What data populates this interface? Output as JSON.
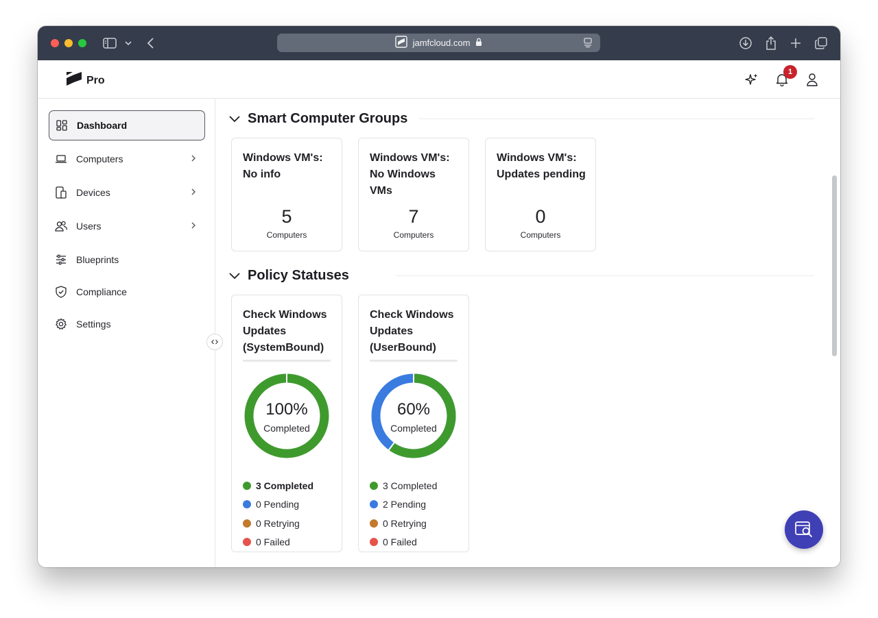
{
  "browser": {
    "url": "jamfcloud.com"
  },
  "header": {
    "app_name": "Pro",
    "notification_count": "1"
  },
  "sidebar": {
    "items": [
      {
        "label": "Dashboard",
        "icon": "dashboard-icon",
        "active": true,
        "has_chevron": false
      },
      {
        "label": "Computers",
        "icon": "laptop-icon",
        "active": false,
        "has_chevron": true
      },
      {
        "label": "Devices",
        "icon": "devices-icon",
        "active": false,
        "has_chevron": true
      },
      {
        "label": "Users",
        "icon": "users-icon",
        "active": false,
        "has_chevron": true
      },
      {
        "label": "Blueprints",
        "icon": "sliders-icon",
        "active": false,
        "has_chevron": false
      },
      {
        "label": "Compliance",
        "icon": "shield-check-icon",
        "active": false,
        "has_chevron": false
      },
      {
        "label": "Settings",
        "icon": "gear-icon",
        "active": false,
        "has_chevron": false
      }
    ]
  },
  "smart_groups": {
    "title": "Smart Computer Groups",
    "cards": [
      {
        "title": "Windows VM's: No info",
        "count": "5",
        "unit": "Computers"
      },
      {
        "title": "Windows VM's: No Windows VMs",
        "count": "7",
        "unit": "Computers"
      },
      {
        "title": "Windows VM's: Updates pending",
        "count": "0",
        "unit": "Computers"
      }
    ]
  },
  "policy_statuses": {
    "title": "Policy Statuses",
    "cards": [
      {
        "title": "Check Windows Updates (SystemBound)",
        "percent_label": "100%",
        "percent_caption": "Completed",
        "completed_fraction": 1.0,
        "legend": [
          {
            "label": "3 Completed",
            "color": "#3f9a2e",
            "bold": true
          },
          {
            "label": "0 Pending",
            "color": "#3a7be0",
            "bold": false
          },
          {
            "label": "0 Retrying",
            "color": "#c27a2c",
            "bold": false
          },
          {
            "label": "0 Failed",
            "color": "#e5534b",
            "bold": false
          }
        ]
      },
      {
        "title": "Check Windows Updates (UserBound)",
        "percent_label": "60%",
        "percent_caption": "Completed",
        "completed_fraction": 0.6,
        "legend": [
          {
            "label": "3 Completed",
            "color": "#3f9a2e",
            "bold": false
          },
          {
            "label": "2 Pending",
            "color": "#3a7be0",
            "bold": false
          },
          {
            "label": "0 Retrying",
            "color": "#c27a2c",
            "bold": false
          },
          {
            "label": "0 Failed",
            "color": "#e5534b",
            "bold": false
          }
        ]
      }
    ]
  },
  "colors": {
    "completed": "#3f9a2e",
    "pending": "#3a7be0",
    "accent": "#3f3fb6"
  }
}
